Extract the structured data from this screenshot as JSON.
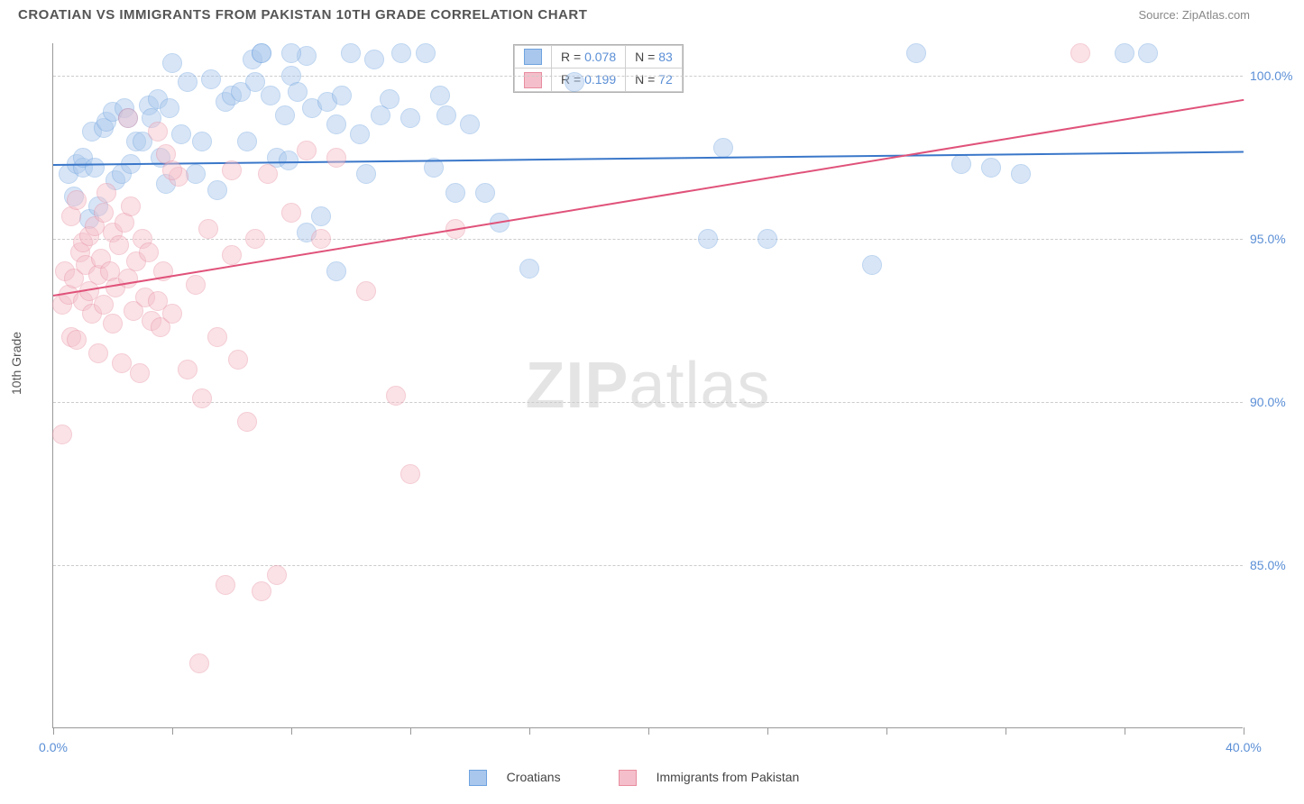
{
  "title": "CROATIAN VS IMMIGRANTS FROM PAKISTAN 10TH GRADE CORRELATION CHART",
  "source_label": "Source: ZipAtlas.com",
  "y_axis_label": "10th Grade",
  "watermark_bold": "ZIP",
  "watermark_rest": "atlas",
  "chart": {
    "type": "scatter",
    "background_color": "#ffffff",
    "grid_color": "#cccccc",
    "axis_color": "#999999",
    "tick_label_color": "#5b8fd6",
    "label_color": "#555555",
    "marker_radius": 11,
    "marker_opacity": 0.45,
    "x": {
      "min": 0,
      "max": 40,
      "ticks": [
        0,
        4,
        8,
        12,
        16,
        20,
        24,
        28,
        32,
        36,
        40
      ],
      "tick_labels": {
        "0": "0.0%",
        "40": "40.0%"
      }
    },
    "y": {
      "min": 80,
      "max": 101,
      "gridlines": [
        85,
        90,
        95,
        100
      ],
      "tick_labels": {
        "85": "85.0%",
        "90": "90.0%",
        "95": "95.0%",
        "100": "100.0%"
      }
    }
  },
  "series": [
    {
      "name": "Croatians",
      "color_fill": "#a9c7ec",
      "color_stroke": "#6fa3df",
      "reg_color": "#3a77c9",
      "R": "0.078",
      "N": "83",
      "regression": {
        "x1": 0,
        "y1": 97.3,
        "x2": 40,
        "y2": 97.7
      },
      "points": [
        [
          0.5,
          97.0
        ],
        [
          0.7,
          96.3
        ],
        [
          0.8,
          97.3
        ],
        [
          1.0,
          97.2
        ],
        [
          1.0,
          97.5
        ],
        [
          1.2,
          95.6
        ],
        [
          1.3,
          98.3
        ],
        [
          1.4,
          97.2
        ],
        [
          1.5,
          96.0
        ],
        [
          1.7,
          98.4
        ],
        [
          1.8,
          98.6
        ],
        [
          2.0,
          98.9
        ],
        [
          2.1,
          96.8
        ],
        [
          2.3,
          97.0
        ],
        [
          2.4,
          99.0
        ],
        [
          2.5,
          98.7
        ],
        [
          2.6,
          97.3
        ],
        [
          2.8,
          98.0
        ],
        [
          3.0,
          98.0
        ],
        [
          3.2,
          99.1
        ],
        [
          3.3,
          98.7
        ],
        [
          3.5,
          99.3
        ],
        [
          3.6,
          97.5
        ],
        [
          3.8,
          96.7
        ],
        [
          3.9,
          99.0
        ],
        [
          4.0,
          100.4
        ],
        [
          4.3,
          98.2
        ],
        [
          4.5,
          99.8
        ],
        [
          4.8,
          97.0
        ],
        [
          5.0,
          98.0
        ],
        [
          5.3,
          99.9
        ],
        [
          5.5,
          96.5
        ],
        [
          5.8,
          99.2
        ],
        [
          6.0,
          99.4
        ],
        [
          6.3,
          99.5
        ],
        [
          6.5,
          98.0
        ],
        [
          6.7,
          100.5
        ],
        [
          6.8,
          99.8
        ],
        [
          7.0,
          100.7
        ],
        [
          7.3,
          99.4
        ],
        [
          7.5,
          97.5
        ],
        [
          7.8,
          98.8
        ],
        [
          7.9,
          97.4
        ],
        [
          8.0,
          100.0
        ],
        [
          8.2,
          99.5
        ],
        [
          8.5,
          95.2
        ],
        [
          8.5,
          100.6
        ],
        [
          8.7,
          99.0
        ],
        [
          9.0,
          95.7
        ],
        [
          9.2,
          99.2
        ],
        [
          9.5,
          94.0
        ],
        [
          9.7,
          99.4
        ],
        [
          10.0,
          100.7
        ],
        [
          10.3,
          98.2
        ],
        [
          10.5,
          97.0
        ],
        [
          10.8,
          100.5
        ],
        [
          11.0,
          98.8
        ],
        [
          11.3,
          99.3
        ],
        [
          11.7,
          100.7
        ],
        [
          12.0,
          98.7
        ],
        [
          12.5,
          100.7
        ],
        [
          12.8,
          97.2
        ],
        [
          13.0,
          99.4
        ],
        [
          13.2,
          98.8
        ],
        [
          13.5,
          96.4
        ],
        [
          14.0,
          98.5
        ],
        [
          14.5,
          96.4
        ],
        [
          15.0,
          95.5
        ],
        [
          16.0,
          94.1
        ],
        [
          17.5,
          99.8
        ],
        [
          22.0,
          95.0
        ],
        [
          22.5,
          97.8
        ],
        [
          24.0,
          95.0
        ],
        [
          27.5,
          94.2
        ],
        [
          29.0,
          100.7
        ],
        [
          30.5,
          97.3
        ],
        [
          31.5,
          97.2
        ],
        [
          32.5,
          97.0
        ],
        [
          36.0,
          100.7
        ],
        [
          36.8,
          100.7
        ],
        [
          7.0,
          100.7
        ],
        [
          8.0,
          100.7
        ],
        [
          9.5,
          98.5
        ]
      ]
    },
    {
      "name": "Immigrants from Pakistan",
      "color_fill": "#f4bfca",
      "color_stroke": "#e88da0",
      "reg_color": "#e0527a",
      "R": "0.199",
      "N": "72",
      "regression": {
        "x1": 0,
        "y1": 93.3,
        "x2": 40,
        "y2": 99.3
      },
      "points": [
        [
          0.3,
          93.0
        ],
        [
          0.4,
          94.0
        ],
        [
          0.5,
          93.3
        ],
        [
          0.6,
          95.7
        ],
        [
          0.6,
          92.0
        ],
        [
          0.7,
          93.8
        ],
        [
          0.8,
          96.2
        ],
        [
          0.8,
          91.9
        ],
        [
          0.9,
          94.6
        ],
        [
          1.0,
          93.1
        ],
        [
          1.0,
          94.9
        ],
        [
          1.1,
          94.2
        ],
        [
          1.2,
          93.4
        ],
        [
          1.2,
          95.1
        ],
        [
          1.3,
          92.7
        ],
        [
          1.4,
          95.4
        ],
        [
          1.5,
          93.9
        ],
        [
          1.5,
          91.5
        ],
        [
          1.6,
          94.4
        ],
        [
          1.7,
          95.8
        ],
        [
          1.7,
          93.0
        ],
        [
          1.8,
          96.4
        ],
        [
          1.9,
          94.0
        ],
        [
          2.0,
          92.4
        ],
        [
          2.0,
          95.2
        ],
        [
          2.1,
          93.5
        ],
        [
          2.2,
          94.8
        ],
        [
          2.3,
          91.2
        ],
        [
          2.4,
          95.5
        ],
        [
          2.5,
          93.8
        ],
        [
          2.6,
          96.0
        ],
        [
          2.7,
          92.8
        ],
        [
          2.8,
          94.3
        ],
        [
          2.9,
          90.9
        ],
        [
          3.0,
          95.0
        ],
        [
          3.1,
          93.2
        ],
        [
          3.2,
          94.6
        ],
        [
          3.3,
          92.5
        ],
        [
          3.5,
          93.1
        ],
        [
          3.6,
          92.3
        ],
        [
          3.7,
          94.0
        ],
        [
          3.8,
          97.6
        ],
        [
          4.0,
          92.7
        ],
        [
          4.2,
          96.9
        ],
        [
          4.5,
          91.0
        ],
        [
          4.8,
          93.6
        ],
        [
          5.0,
          90.1
        ],
        [
          5.2,
          95.3
        ],
        [
          5.5,
          92.0
        ],
        [
          5.8,
          84.4
        ],
        [
          6.0,
          94.5
        ],
        [
          6.2,
          91.3
        ],
        [
          6.5,
          89.4
        ],
        [
          6.8,
          95.0
        ],
        [
          7.0,
          84.2
        ],
        [
          7.2,
          97.0
        ],
        [
          7.5,
          84.7
        ],
        [
          8.0,
          95.8
        ],
        [
          8.5,
          97.7
        ],
        [
          9.0,
          95.0
        ],
        [
          9.5,
          97.5
        ],
        [
          10.5,
          93.4
        ],
        [
          11.5,
          90.2
        ],
        [
          12.0,
          87.8
        ],
        [
          13.5,
          95.3
        ],
        [
          4.9,
          82.0
        ],
        [
          2.5,
          98.7
        ],
        [
          3.5,
          98.3
        ],
        [
          4.0,
          97.1
        ],
        [
          6.0,
          97.1
        ],
        [
          34.5,
          100.7
        ],
        [
          0.3,
          89.0
        ]
      ]
    }
  ],
  "stats_legend": {
    "R_label": "R =",
    "N_label": "N ="
  },
  "bottom_legend": {
    "items": [
      "Croatians",
      "Immigrants from Pakistan"
    ]
  }
}
